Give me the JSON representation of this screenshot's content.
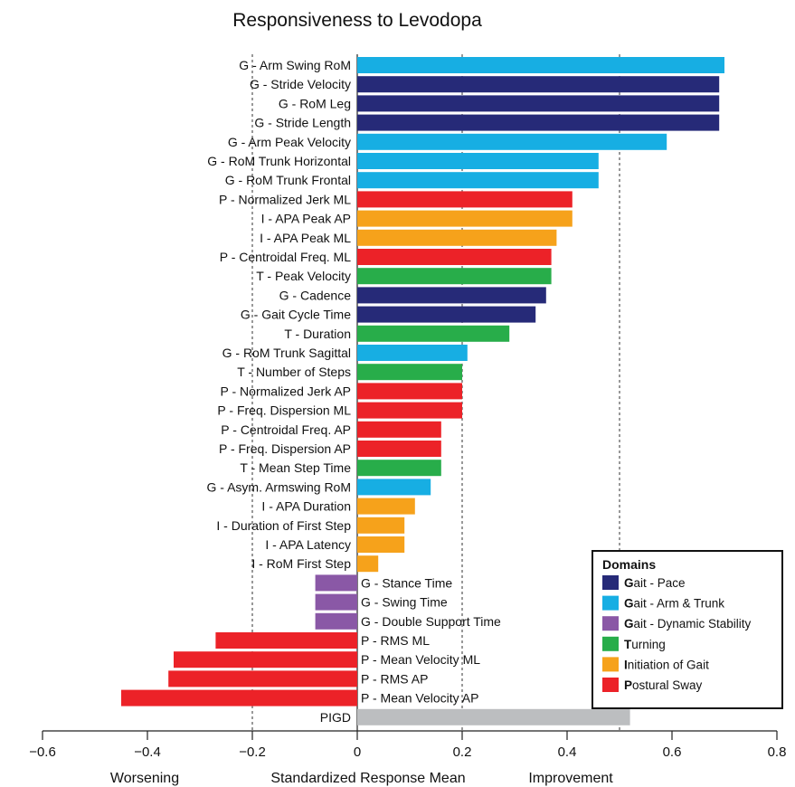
{
  "chart_data": {
    "type": "bar",
    "orientation": "horizontal",
    "title": "Responsiveness to Levodopa",
    "xlim": [
      -0.6,
      0.8
    ],
    "xticks": [
      -0.6,
      -0.4,
      -0.2,
      0,
      0.2,
      0.4,
      0.6,
      0.8
    ],
    "xtick_labels": [
      "−0.6",
      "−0.4",
      "−0.2",
      "0",
      "0.2",
      "0.4",
      "0.6",
      "0.8"
    ],
    "reference_lines": [
      -0.2,
      0.2,
      0.5
    ],
    "xlabel": "Standardized Response Mean",
    "x_left_caption": "Worsening",
    "x_right_caption": "Improvement",
    "legend": {
      "title": "Domains",
      "placement": "bottom-right",
      "items": [
        {
          "key": "gait_pace",
          "bold": "G",
          "rest": "ait - Pace",
          "color": "#262a78"
        },
        {
          "key": "gait_arm",
          "bold": "G",
          "rest": "ait - Arm & Trunk",
          "color": "#17aee3"
        },
        {
          "key": "gait_dyn",
          "bold": "G",
          "rest": "ait - Dynamic Stability",
          "color": "#8a58a6"
        },
        {
          "key": "turning",
          "bold": "T",
          "rest": "urning",
          "color": "#28ad4a"
        },
        {
          "key": "init",
          "bold": "I",
          "rest": "nitiation of Gait",
          "color": "#f6a21b"
        },
        {
          "key": "postural",
          "bold": "P",
          "rest": "ostural Sway",
          "color": "#ec2228"
        }
      ]
    },
    "bars": [
      {
        "label": "G - Arm Swing RoM",
        "value": 0.7,
        "domain": "gait_arm"
      },
      {
        "label": "G - Stride Velocity",
        "value": 0.69,
        "domain": "gait_pace"
      },
      {
        "label": "G - RoM Leg",
        "value": 0.69,
        "domain": "gait_pace"
      },
      {
        "label": "G - Stride Length",
        "value": 0.69,
        "domain": "gait_pace"
      },
      {
        "label": "G - Arm Peak Velocity",
        "value": 0.59,
        "domain": "gait_arm"
      },
      {
        "label": "G - RoM Trunk Horizontal",
        "value": 0.46,
        "domain": "gait_arm"
      },
      {
        "label": "G - RoM Trunk Frontal",
        "value": 0.46,
        "domain": "gait_arm"
      },
      {
        "label": "P - Normalized Jerk ML",
        "value": 0.41,
        "domain": "postural"
      },
      {
        "label": "I - APA Peak AP",
        "value": 0.41,
        "domain": "init"
      },
      {
        "label": "I - APA Peak ML",
        "value": 0.38,
        "domain": "init"
      },
      {
        "label": "P - Centroidal Freq. ML",
        "value": 0.37,
        "domain": "postural"
      },
      {
        "label": "T - Peak Velocity",
        "value": 0.37,
        "domain": "turning"
      },
      {
        "label": "G - Cadence",
        "value": 0.36,
        "domain": "gait_pace"
      },
      {
        "label": "G - Gait Cycle Time",
        "value": 0.34,
        "domain": "gait_pace"
      },
      {
        "label": "T - Duration",
        "value": 0.29,
        "domain": "turning"
      },
      {
        "label": "G - RoM Trunk Sagittal",
        "value": 0.21,
        "domain": "gait_arm"
      },
      {
        "label": "T - Number of Steps",
        "value": 0.2,
        "domain": "turning"
      },
      {
        "label": "P - Normalized Jerk AP",
        "value": 0.2,
        "domain": "postural"
      },
      {
        "label": "P - Freq. Dispersion ML",
        "value": 0.2,
        "domain": "postural"
      },
      {
        "label": "P - Centroidal Freq. AP",
        "value": 0.16,
        "domain": "postural"
      },
      {
        "label": "P - Freq. Dispersion AP",
        "value": 0.16,
        "domain": "postural"
      },
      {
        "label": "T - Mean Step Time",
        "value": 0.16,
        "domain": "turning"
      },
      {
        "label": "G - Asym. Armswing RoM",
        "value": 0.14,
        "domain": "gait_arm"
      },
      {
        "label": "I - APA Duration",
        "value": 0.11,
        "domain": "init"
      },
      {
        "label": "I - Duration of First Step",
        "value": 0.09,
        "domain": "init"
      },
      {
        "label": "I - APA Latency",
        "value": 0.09,
        "domain": "init"
      },
      {
        "label": "I - RoM First Step",
        "value": 0.04,
        "domain": "init"
      },
      {
        "label": "G - Stance Time",
        "value": -0.08,
        "domain": "gait_dyn"
      },
      {
        "label": "G - Swing Time",
        "value": -0.08,
        "domain": "gait_dyn"
      },
      {
        "label": "G - Double Support Time",
        "value": -0.08,
        "domain": "gait_dyn"
      },
      {
        "label": "P - RMS ML",
        "value": -0.27,
        "domain": "postural"
      },
      {
        "label": "P - Mean Velocity ML",
        "value": -0.35,
        "domain": "postural"
      },
      {
        "label": "P - RMS AP",
        "value": -0.36,
        "domain": "postural"
      },
      {
        "label": "P - Mean Velocity AP",
        "value": -0.45,
        "domain": "postural"
      },
      {
        "label": "PIGD",
        "value": 0.52,
        "domain": "pigd",
        "color": "#bcbec0"
      }
    ]
  }
}
